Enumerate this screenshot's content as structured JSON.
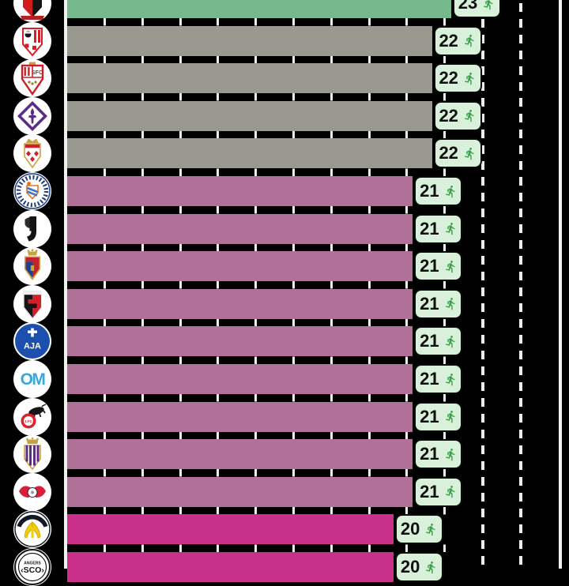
{
  "chart_data": {
    "type": "bar",
    "orientation": "horizontal",
    "description_visible": "leaderboard of club crests with horizontal bars, value badges carry a running-player icon",
    "value_icon": "running-player-icon",
    "rows": [
      {
        "club": "OGC Nice",
        "logo": "ogc-nice-crest",
        "value": 23,
        "bar_color": "#76B98C"
      },
      {
        "club": "AC Ajaccio",
        "logo": "ac-ajaccio-crest",
        "value": 22,
        "bar_color": "#9A998F"
      },
      {
        "club": "Sevilla FC",
        "logo": "sevilla-crest",
        "value": 22,
        "bar_color": "#9A998F"
      },
      {
        "club": "ACF Fiorentina",
        "logo": "fiorentina-crest",
        "value": 22,
        "bar_color": "#9A998F"
      },
      {
        "club": "AS Monaco",
        "logo": "monaco-crest",
        "value": 22,
        "bar_color": "#9A998F"
      },
      {
        "club": "Montpellier HSC",
        "logo": "montpellier-crest",
        "value": 21,
        "bar_color": "#B17098"
      },
      {
        "club": "Juventus",
        "logo": "juventus-crest",
        "value": 21,
        "bar_color": "#B17098"
      },
      {
        "club": "Elche CF",
        "logo": "elche-crest",
        "value": 21,
        "bar_color": "#B17098"
      },
      {
        "club": "Stade Rennais",
        "logo": "rennes-crest",
        "value": 21,
        "bar_color": "#B17098"
      },
      {
        "club": "AJ Auxerre",
        "logo": "auxerre-crest",
        "value": 21,
        "bar_color": "#B17098"
      },
      {
        "club": "Olympique Marseille",
        "logo": "marseille-crest",
        "value": 21,
        "bar_color": "#B17098"
      },
      {
        "club": "1. FC Koln",
        "logo": "fc-koln-crest",
        "value": 21,
        "bar_color": "#B17098"
      },
      {
        "club": "Real Valladolid",
        "logo": "valladolid-crest",
        "value": 21,
        "bar_color": "#B17098"
      },
      {
        "club": "RB Leipzig",
        "logo": "rb-leipzig-crest",
        "value": 21,
        "bar_color": "#B17098"
      },
      {
        "club": "Hellas Verona",
        "logo": "hellas-verona-crest",
        "value": 20,
        "bar_color": "#C9308A"
      },
      {
        "club": "Angers SCO",
        "logo": "angers-sco-crest",
        "value": 20,
        "bar_color": "#C9308A"
      }
    ],
    "visible_values": [
      23,
      22,
      21,
      20
    ],
    "badge": {
      "background": "#D9F0DA",
      "border_color": "#0A0A0A",
      "text_color": "#101010",
      "icon_color": "#3BA24B"
    },
    "colors": {
      "background": "#000000",
      "gridline": "#ECECEC",
      "bar_green": "#76B98C",
      "bar_gray": "#9A998F",
      "bar_mauve": "#B17098",
      "bar_magenta": "#C9308A"
    },
    "layout_hints": {
      "grid": "dashed vertical gridlines, two full-height dashed lines right of bars, solid axis line left and solid border line right",
      "first_and_last_rows_cropped": true
    }
  }
}
